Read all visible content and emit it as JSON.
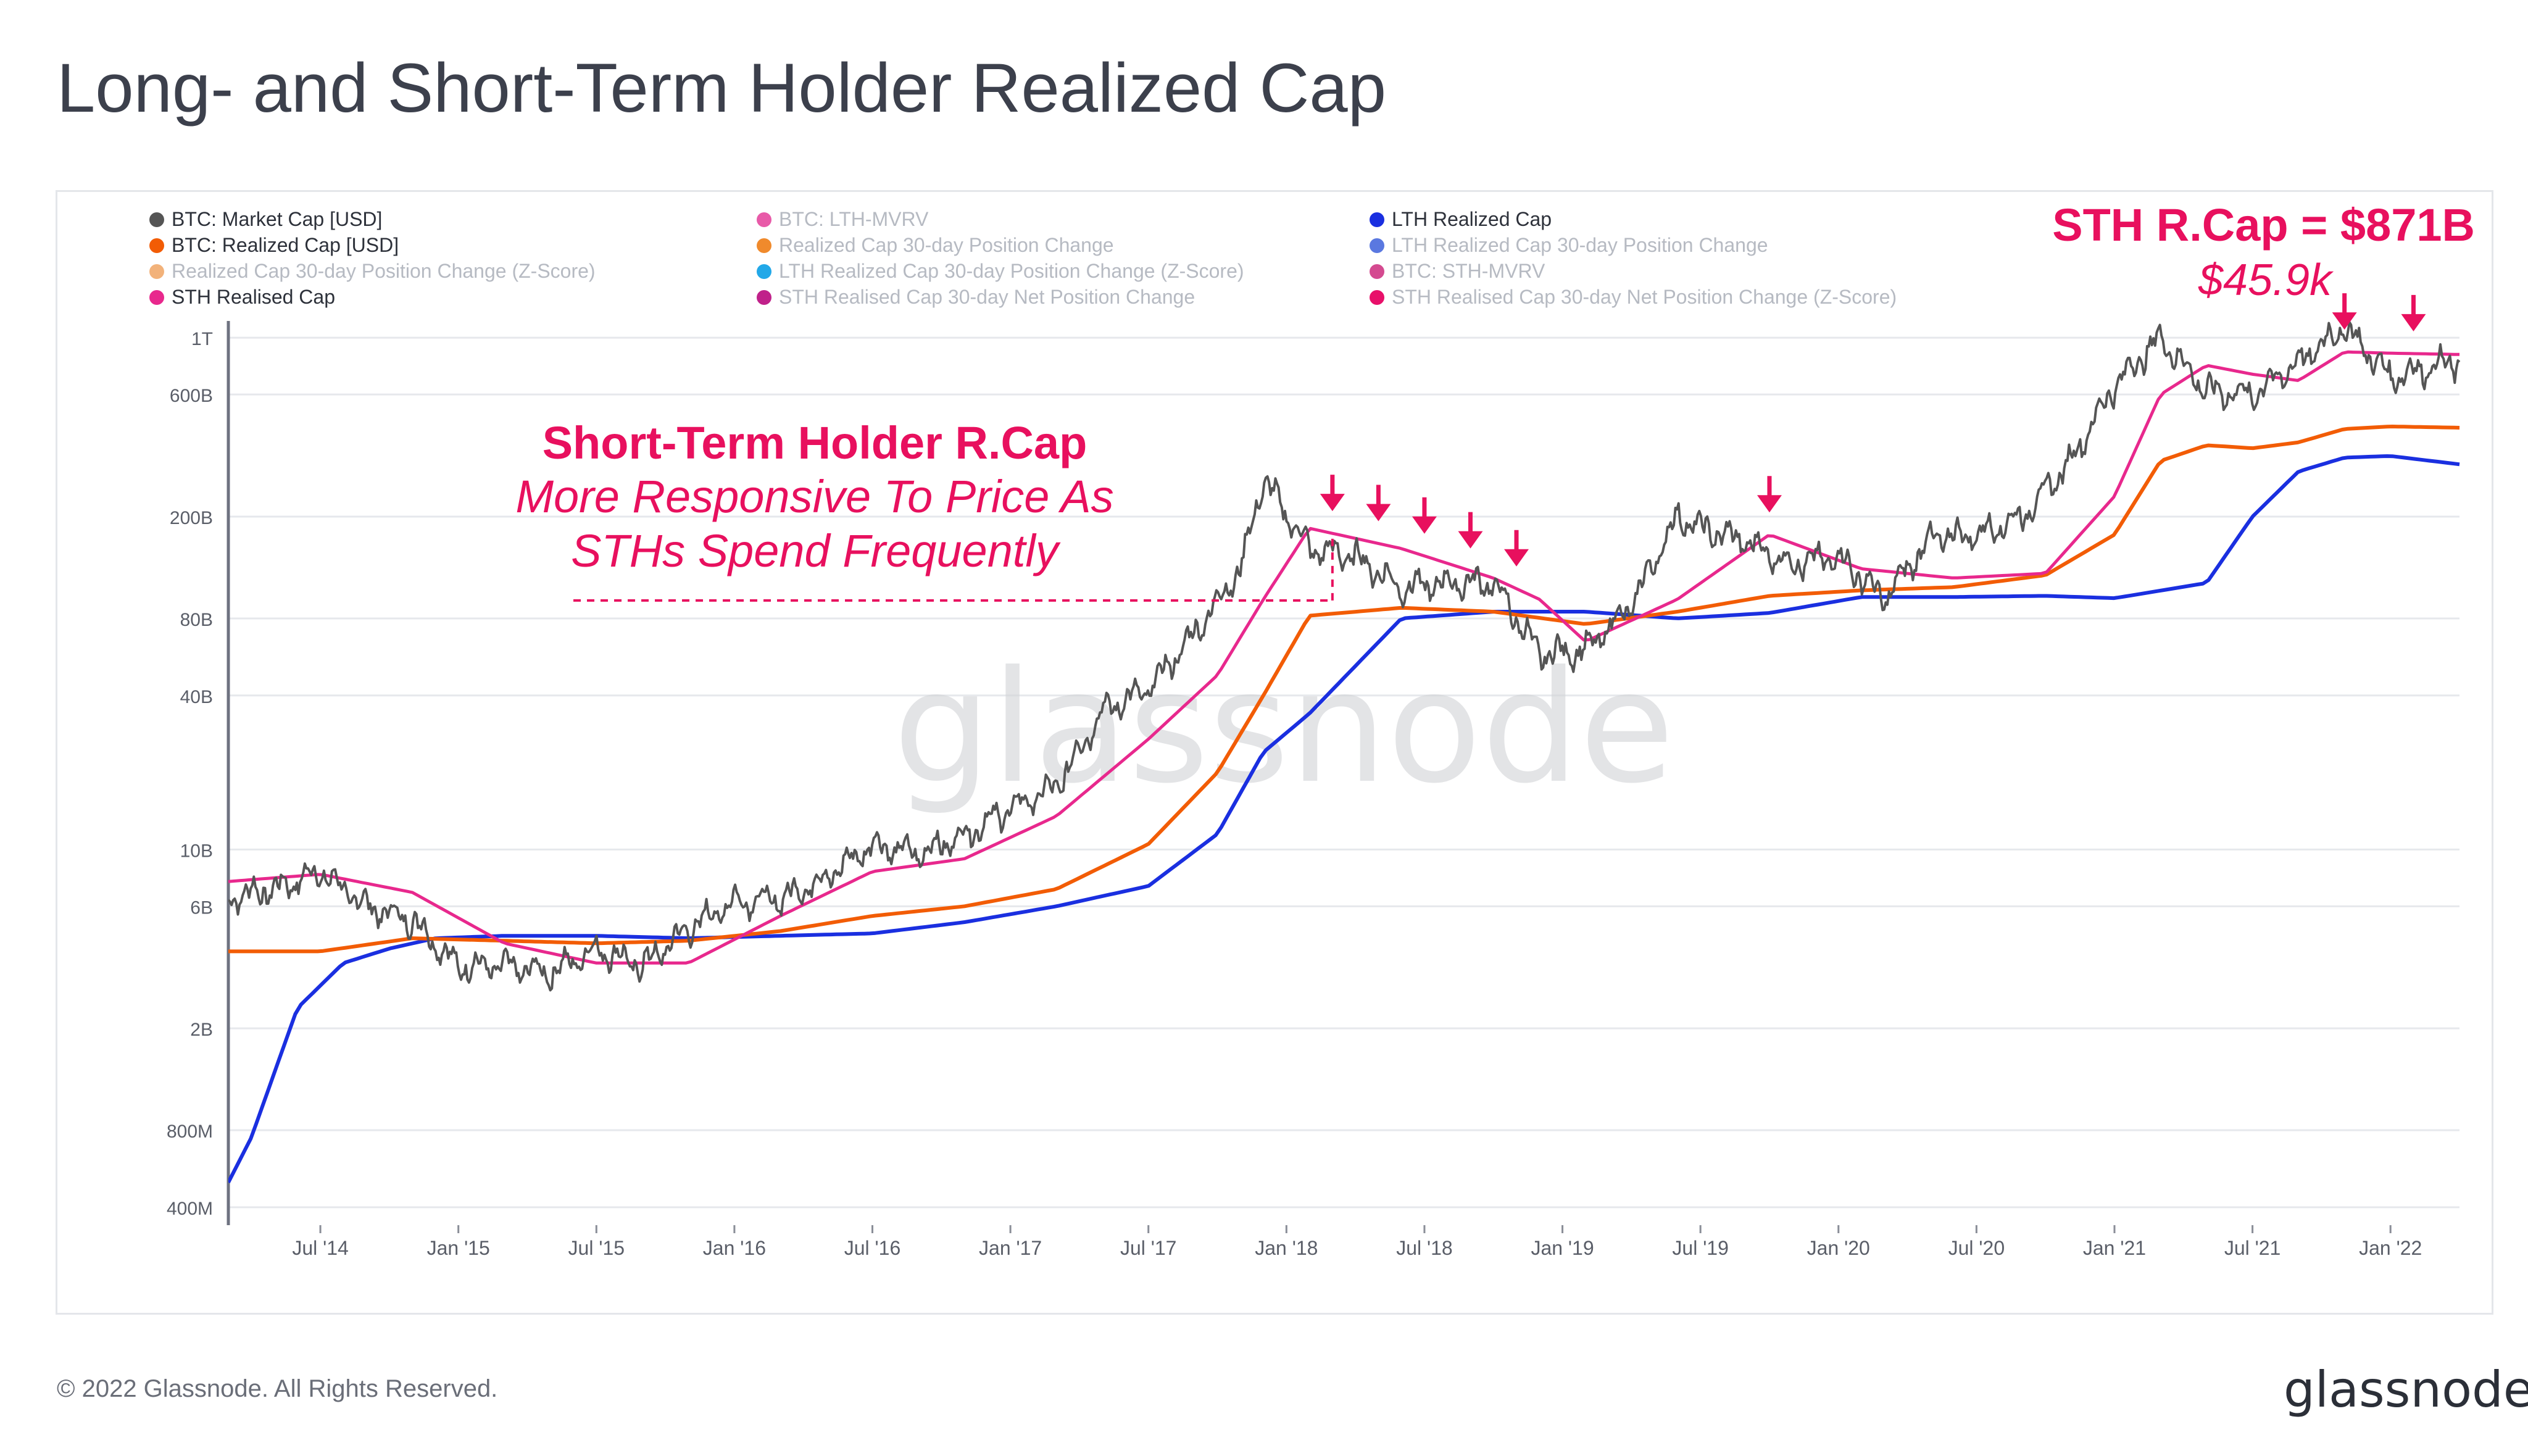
{
  "page": {
    "title": "Long- and Short-Term Holder Realized Cap",
    "copyright": "© 2022 Glassnode. All Rights Reserved.",
    "brand": "glassnode",
    "watermark": "glassnode"
  },
  "legend": [
    {
      "label": "BTC: Market Cap [USD]",
      "color": "#555555",
      "active": true
    },
    {
      "label": "BTC: Realized Cap [USD]",
      "color": "#f25c05",
      "active": true
    },
    {
      "label": "Realized Cap 30-day Position Change (Z-Score)",
      "color": "#f2b27a",
      "active": false
    },
    {
      "label": "STH Realised Cap",
      "color": "#e8288d",
      "active": true
    },
    {
      "label": "BTC: LTH-MVRV",
      "color": "#e85aa8",
      "active": false
    },
    {
      "label": "Realized Cap 30-day Position Change",
      "color": "#f08a2c",
      "active": false
    },
    {
      "label": "LTH Realized Cap 30-day Position Change (Z-Score)",
      "color": "#22a8e8",
      "active": false
    },
    {
      "label": "STH Realised Cap 30-day Net Position Change",
      "color": "#c0218a",
      "active": false
    },
    {
      "label": "LTH Realized Cap",
      "color": "#1a2fe0",
      "active": true
    },
    {
      "label": "LTH Realized Cap 30-day Position Change",
      "color": "#5a78e0",
      "active": false
    },
    {
      "label": "BTC: STH-MVRV",
      "color": "#d44a90",
      "active": false
    },
    {
      "label": "STH Realised Cap 30-day Net Position Change (Z-Score)",
      "color": "#e8106a",
      "active": false
    }
  ],
  "annotations": {
    "sth_heading": "Short-Term Holder R.Cap",
    "sth_line1": "More Responsive To Price As",
    "sth_line2": "STHs Spend Frequently",
    "cap_value": "STH R.Cap = $871B",
    "price_value": "$45.9k"
  },
  "colors": {
    "market_cap": "#555555",
    "realized_cap": "#f25c05",
    "sth_realized_cap": "#e8288d",
    "lth_realized_cap": "#1a2fe0",
    "accent": "#e8105e"
  },
  "chart_data": {
    "type": "line",
    "scale": "log",
    "title": "Long- and Short-Term Holder Realized Cap",
    "y_ticks": [
      {
        "label": "1T",
        "value": 1000000000000
      },
      {
        "label": "600B",
        "value": 600000000000
      },
      {
        "label": "200B",
        "value": 200000000000
      },
      {
        "label": "80B",
        "value": 80000000000
      },
      {
        "label": "40B",
        "value": 40000000000
      },
      {
        "label": "10B",
        "value": 10000000000
      },
      {
        "label": "6B",
        "value": 6000000000
      },
      {
        "label": "2B",
        "value": 2000000000
      },
      {
        "label": "800M",
        "value": 800000000
      },
      {
        "label": "400M",
        "value": 400000000
      }
    ],
    "x_ticks": [
      "Jul '14",
      "Jan '15",
      "Jul '15",
      "Jan '16",
      "Jul '16",
      "Jan '17",
      "Jul '17",
      "Jan '18",
      "Jul '18",
      "Jan '19",
      "Jul '19",
      "Jan '20",
      "Jul '20",
      "Jan '21",
      "Jul '21",
      "Jan '22"
    ],
    "x_range": [
      "2014-03",
      "2022-04"
    ],
    "ylim": [
      350000000,
      1100000000000
    ],
    "arrow_markers": [
      "2018-03",
      "2018-05",
      "2018-07",
      "2018-09",
      "2018-11",
      "2019-10",
      "2021-11",
      "2022-02"
    ],
    "dashed_reference": {
      "start": "2015-06",
      "end": "2018-03",
      "value": 94000000000
    },
    "series": [
      {
        "name": "BTC: Market Cap [USD]",
        "key": "market_cap",
        "x": [
          "2014-03",
          "2014-05",
          "2014-07",
          "2014-09",
          "2014-11",
          "2015-01",
          "2015-03",
          "2015-05",
          "2015-07",
          "2015-09",
          "2015-11",
          "2016-01",
          "2016-03",
          "2016-05",
          "2016-07",
          "2016-09",
          "2016-11",
          "2017-01",
          "2017-03",
          "2017-05",
          "2017-07",
          "2017-09",
          "2017-11",
          "2017-12",
          "2018-02",
          "2018-04",
          "2018-06",
          "2018-08",
          "2018-10",
          "2018-12",
          "2019-02",
          "2019-04",
          "2019-06",
          "2019-07",
          "2019-09",
          "2019-11",
          "2020-01",
          "2020-03",
          "2020-05",
          "2020-07",
          "2020-09",
          "2020-11",
          "2021-01",
          "2021-03",
          "2021-05",
          "2021-07",
          "2021-09",
          "2021-11",
          "2022-01",
          "2022-03",
          "2022-04"
        ],
        "values": [
          6500000000.0,
          7000000000.0,
          8200000000.0,
          6000000000.0,
          5300000000.0,
          3500000000.0,
          3500000000.0,
          3300000000.0,
          4100000000.0,
          3500000000.0,
          4900000000.0,
          6300000000.0,
          6400000000.0,
          7800000000.0,
          10500000000.0,
          9600000000.0,
          11400000000.0,
          14500000000.0,
          17500000000.0,
          35000000000.0,
          42000000000.0,
          70000000000.0,
          125000000000.0,
          280000000000.0,
          150000000000.0,
          140000000000.0,
          105000000000.0,
          110000000000.0,
          110000000000.0,
          58000000000.0,
          60000000000.0,
          90000000000.0,
          200000000000.0,
          180000000000.0,
          160000000000.0,
          130000000000.0,
          140000000000.0,
          95000000000.0,
          165000000000.0,
          170000000000.0,
          200000000000.0,
          320000000000.0,
          650000000000.0,
          1000000000000.0,
          620000000000.0,
          600000000000.0,
          800000000000.0,
          1100000000000.0,
          700000000000.0,
          780000000000.0,
          800000000000.0
        ]
      },
      {
        "name": "BTC: Realized Cap [USD]",
        "key": "realized_cap",
        "x": [
          "2014-03",
          "2014-07",
          "2014-11",
          "2015-03",
          "2015-07",
          "2015-11",
          "2016-03",
          "2016-07",
          "2016-11",
          "2017-03",
          "2017-07",
          "2017-10",
          "2017-12",
          "2018-02",
          "2018-06",
          "2018-10",
          "2019-02",
          "2019-06",
          "2019-10",
          "2020-02",
          "2020-06",
          "2020-10",
          "2021-01",
          "2021-03",
          "2021-05",
          "2021-07",
          "2021-09",
          "2021-11",
          "2022-01",
          "2022-04"
        ],
        "values": [
          4000000000.0,
          4000000000.0,
          4500000000.0,
          4400000000.0,
          4300000000.0,
          4400000000.0,
          4800000000.0,
          5500000000.0,
          6000000000.0,
          7000000000.0,
          10500000000.0,
          20000000000.0,
          40000000000.0,
          82000000000.0,
          88000000000.0,
          85000000000.0,
          76000000000.0,
          85000000000.0,
          98000000000.0,
          103000000000.0,
          106000000000.0,
          118000000000.0,
          170000000000.0,
          330000000000.0,
          380000000000.0,
          370000000000.0,
          390000000000.0,
          440000000000.0,
          450000000000.0,
          445000000000.0
        ]
      },
      {
        "name": "STH Realised Cap",
        "key": "sth_realized_cap",
        "x": [
          "2014-03",
          "2014-07",
          "2014-11",
          "2015-03",
          "2015-07",
          "2015-11",
          "2016-03",
          "2016-07",
          "2016-11",
          "2017-03",
          "2017-07",
          "2017-10",
          "2017-12",
          "2018-02",
          "2018-06",
          "2018-10",
          "2018-12",
          "2019-02",
          "2019-06",
          "2019-10",
          "2020-02",
          "2020-06",
          "2020-10",
          "2021-01",
          "2021-03",
          "2021-05",
          "2021-07",
          "2021-09",
          "2021-11",
          "2022-01",
          "2022-04"
        ],
        "values": [
          7500000000.0,
          8000000000.0,
          6800000000.0,
          4300000000.0,
          3600000000.0,
          3600000000.0,
          5500000000.0,
          8200000000.0,
          9200000000.0,
          13500000000.0,
          27000000000.0,
          48000000000.0,
          95000000000.0,
          180000000000.0,
          150000000000.0,
          115000000000.0,
          95000000000.0,
          65000000000.0,
          95000000000.0,
          170000000000.0,
          125000000000.0,
          115000000000.0,
          120000000000.0,
          240000000000.0,
          600000000000.0,
          780000000000.0,
          720000000000.0,
          680000000000.0,
          880000000000.0,
          870000000000.0,
          860000000000.0
        ]
      },
      {
        "name": "LTH Realized Cap",
        "key": "lth_realized_cap",
        "x": [
          "2014-03",
          "2014-04",
          "2014-06",
          "2014-08",
          "2014-10",
          "2014-12",
          "2015-03",
          "2015-07",
          "2015-11",
          "2016-03",
          "2016-07",
          "2016-11",
          "2017-03",
          "2017-07",
          "2017-10",
          "2017-12",
          "2018-02",
          "2018-06",
          "2018-10",
          "2019-02",
          "2019-06",
          "2019-10",
          "2020-02",
          "2020-06",
          "2020-10",
          "2021-01",
          "2021-05",
          "2021-07",
          "2021-09",
          "2021-11",
          "2022-01",
          "2022-04"
        ],
        "values": [
          500000000.0,
          750000000.0,
          2400000000.0,
          3600000000.0,
          4100000000.0,
          4500000000.0,
          4600000000.0,
          4600000000.0,
          4500000000.0,
          4600000000.0,
          4700000000.0,
          5200000000.0,
          6000000000.0,
          7200000000.0,
          11500000000.0,
          24000000000.0,
          34000000000.0,
          80000000000.0,
          85000000000.0,
          85000000000.0,
          80000000000.0,
          84000000000.0,
          97000000000.0,
          97000000000.0,
          98000000000.0,
          96000000000.0,
          110000000000.0,
          200000000000.0,
          300000000000.0,
          340000000000.0,
          345000000000.0,
          320000000000.0
        ]
      }
    ]
  }
}
